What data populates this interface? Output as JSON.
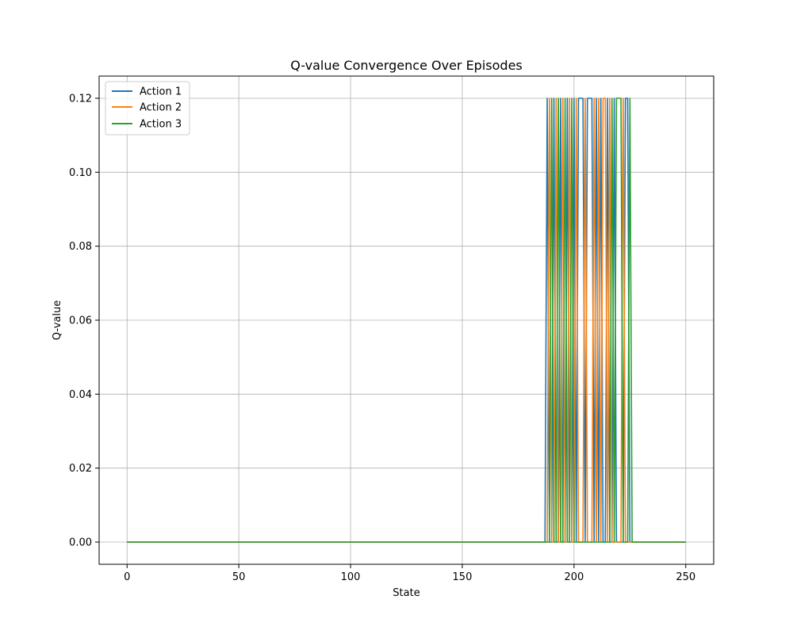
{
  "chart_data": {
    "type": "line",
    "title": "Q-value Convergence Over Episodes",
    "xlabel": "State",
    "ylabel": "Q-value",
    "xlim": [
      -12.5,
      262.5
    ],
    "ylim": [
      -0.006,
      0.126
    ],
    "xticks": [
      0,
      50,
      100,
      150,
      200,
      250
    ],
    "yticks": [
      0.0,
      0.02,
      0.04,
      0.06,
      0.08,
      0.1,
      0.12
    ],
    "ytick_labels": [
      "0.00",
      "0.02",
      "0.04",
      "0.06",
      "0.08",
      "0.10",
      "0.12"
    ],
    "grid": true,
    "legend": "upper-left",
    "x_range": [
      0,
      250
    ],
    "series": [
      {
        "name": "Action 1",
        "color": "#1f77b4",
        "high_states": [
          188,
          191,
          194,
          197,
          200,
          202,
          203,
          204,
          206,
          207,
          208,
          210,
          212,
          215,
          218,
          223,
          224
        ]
      },
      {
        "name": "Action 2",
        "color": "#ff7f0e",
        "high_states": [
          189,
          192,
          195,
          198,
          201,
          205,
          209,
          211,
          213,
          214,
          216,
          222
        ]
      },
      {
        "name": "Action 3",
        "color": "#2ca02c",
        "high_states": [
          190,
          193,
          196,
          199,
          217,
          219,
          220,
          221,
          225
        ]
      }
    ]
  }
}
